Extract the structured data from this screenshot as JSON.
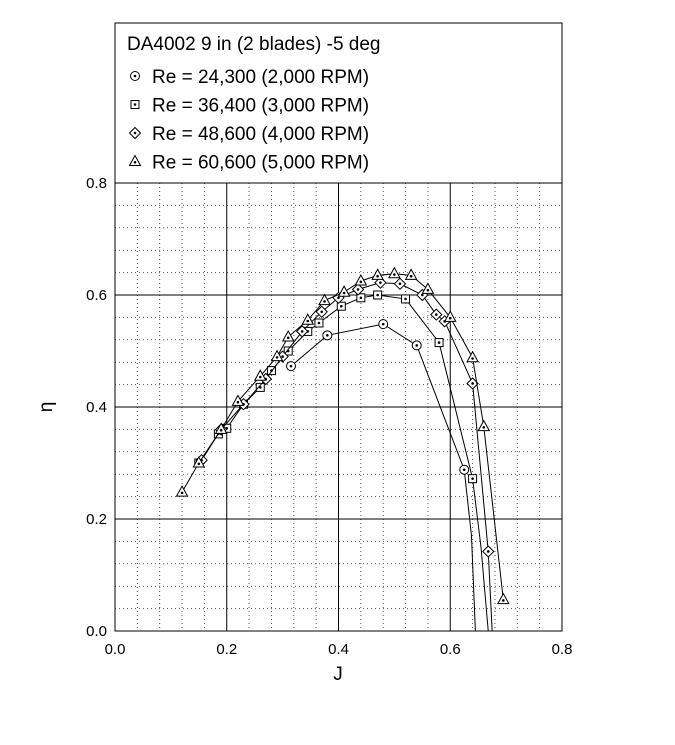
{
  "chart_data": {
    "type": "line",
    "title": "DA4002 9 in (2 blades) -5 deg",
    "xlabel": "J",
    "ylabel": "η",
    "xlim": [
      0.0,
      0.8
    ],
    "ylim": [
      0.0,
      0.8
    ],
    "x_ticks": [
      "0.0",
      "0.2",
      "0.4",
      "0.6",
      "0.8"
    ],
    "y_ticks": [
      "0.0",
      "0.2",
      "0.4",
      "0.6",
      "0.8"
    ],
    "grid": true,
    "legend_position": "top (inside boxed title panel above the plot)",
    "series": [
      {
        "name": "Re = 24,300 (2,000 RPM)",
        "marker": "circle-dot",
        "points": [
          [
            0.315,
            0.473
          ],
          [
            0.38,
            0.528
          ],
          [
            0.48,
            0.548
          ],
          [
            0.54,
            0.51
          ],
          [
            0.625,
            0.288
          ],
          [
            0.638,
            0.17
          ],
          [
            0.645,
            0.0
          ]
        ]
      },
      {
        "name": "Re = 36,400 (3,000 RPM)",
        "marker": "square-dot",
        "points": [
          [
            0.15,
            0.3
          ],
          [
            0.185,
            0.352
          ],
          [
            0.2,
            0.362
          ],
          [
            0.23,
            0.405
          ],
          [
            0.26,
            0.435
          ],
          [
            0.28,
            0.465
          ],
          [
            0.31,
            0.5
          ],
          [
            0.345,
            0.535
          ],
          [
            0.365,
            0.55
          ],
          [
            0.405,
            0.58
          ],
          [
            0.44,
            0.595
          ],
          [
            0.47,
            0.6
          ],
          [
            0.52,
            0.593
          ],
          [
            0.58,
            0.515
          ],
          [
            0.64,
            0.272
          ],
          [
            0.655,
            0.15
          ],
          [
            0.668,
            0.0
          ]
        ]
      },
      {
        "name": "Re = 48,600 (4,000 RPM)",
        "marker": "diamond-dot",
        "points": [
          [
            0.155,
            0.305
          ],
          [
            0.19,
            0.36
          ],
          [
            0.23,
            0.405
          ],
          [
            0.27,
            0.45
          ],
          [
            0.3,
            0.49
          ],
          [
            0.335,
            0.535
          ],
          [
            0.37,
            0.57
          ],
          [
            0.4,
            0.595
          ],
          [
            0.435,
            0.61
          ],
          [
            0.475,
            0.622
          ],
          [
            0.51,
            0.62
          ],
          [
            0.55,
            0.6
          ],
          [
            0.575,
            0.565
          ],
          [
            0.59,
            0.553
          ],
          [
            0.64,
            0.442
          ],
          [
            0.668,
            0.142
          ],
          [
            0.675,
            0.0
          ]
        ]
      },
      {
        "name": "Re = 60,600 (5,000 RPM)",
        "marker": "triangle-dot",
        "points": [
          [
            0.12,
            0.248
          ],
          [
            0.15,
            0.3
          ],
          [
            0.19,
            0.36
          ],
          [
            0.22,
            0.41
          ],
          [
            0.26,
            0.455
          ],
          [
            0.29,
            0.49
          ],
          [
            0.31,
            0.525
          ],
          [
            0.345,
            0.555
          ],
          [
            0.375,
            0.59
          ],
          [
            0.41,
            0.605
          ],
          [
            0.44,
            0.625
          ],
          [
            0.47,
            0.635
          ],
          [
            0.5,
            0.638
          ],
          [
            0.53,
            0.635
          ],
          [
            0.56,
            0.61
          ],
          [
            0.6,
            0.56
          ],
          [
            0.64,
            0.488
          ],
          [
            0.66,
            0.365
          ],
          [
            0.695,
            0.056
          ]
        ]
      }
    ]
  }
}
